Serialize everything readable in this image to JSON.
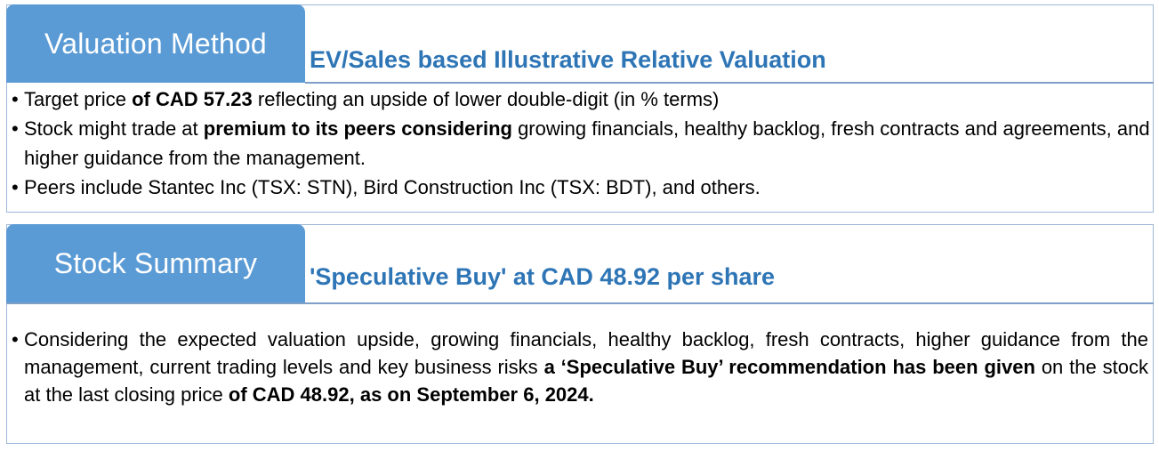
{
  "valuation": {
    "tab_label": "Valuation Method",
    "heading": "EV/Sales based Illustrative Relative Valuation",
    "bullets": [
      {
        "p1": "Target price ",
        "b1": "of CAD 57.23",
        "p2": " reflecting an upside of lower double-digit (in % terms)"
      },
      {
        "p1": "Stock might trade at ",
        "b1": "premium to its peers considering",
        "p2": " growing financials, healthy backlog, fresh contracts and agreements, and higher guidance from the management."
      },
      {
        "p1": "Peers include Stantec Inc (TSX: STN), Bird Construction Inc (TSX: BDT), and others."
      }
    ]
  },
  "summary": {
    "tab_label": "Stock Summary",
    "heading": "'Speculative Buy' at CAD 48.92 per share",
    "bullet": {
      "p1": "Considering the expected valuation upside, growing financials, healthy backlog, fresh contracts, higher guidance from the management, current trading levels and key business risks ",
      "b1": "a ‘Speculative Buy’ recommendation has been given",
      "p2": " on the stock at the last closing price ",
      "b2": "of CAD 48.92, as on September 6, 2024."
    }
  },
  "colors": {
    "tab_bg": "#5b9bd5",
    "heading": "#2e75b6",
    "border": "#9db7d8"
  }
}
